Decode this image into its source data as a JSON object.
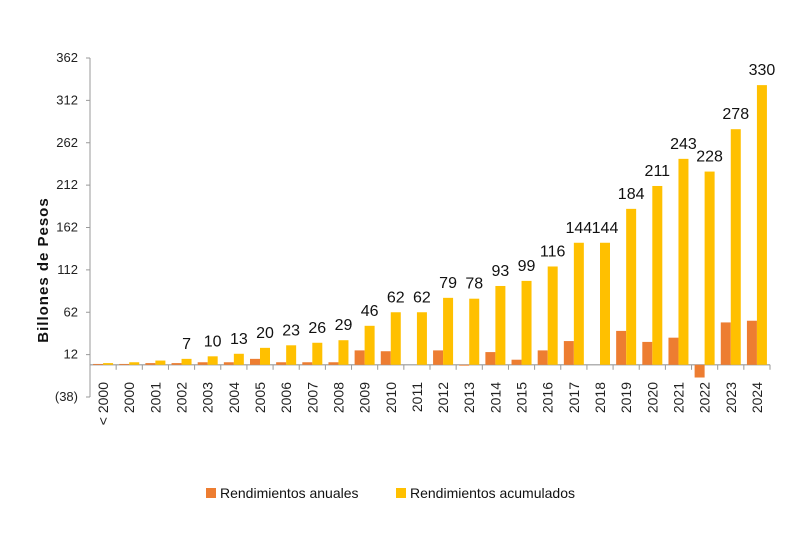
{
  "chart_data": {
    "type": "bar",
    "title": "",
    "xlabel": "",
    "ylabel": "Billones de Pesos",
    "ylim": [
      -38,
      362
    ],
    "yticks": [
      362,
      312,
      262,
      212,
      162,
      112,
      62,
      12,
      -38
    ],
    "ytick_labels": [
      "362",
      "312",
      "262",
      "212",
      "162",
      "112",
      "62",
      "12",
      "(38)"
    ],
    "categories": [
      "< 2000",
      "2000",
      "2001",
      "2002",
      "2003",
      "2004",
      "2005",
      "2006",
      "2007",
      "2008",
      "2009",
      "2010",
      "2011",
      "2012",
      "2013",
      "2014",
      "2015",
      "2016",
      "2017",
      "2018",
      "2019",
      "2020",
      "2021",
      "2022",
      "2023",
      "2024"
    ],
    "series": [
      {
        "name": "Rendimientos anuales",
        "color": "#ED7D31",
        "values": [
          1,
          1,
          2,
          2,
          3,
          3,
          7,
          3,
          3,
          3,
          17,
          16,
          0,
          17,
          -1,
          15,
          6,
          17,
          28,
          0,
          40,
          27,
          32,
          -15,
          50,
          52
        ]
      },
      {
        "name": "Rendimientos acumulados",
        "color": "#FFC000",
        "values": [
          2,
          3,
          5,
          7,
          10,
          13,
          20,
          23,
          26,
          29,
          46,
          62,
          62,
          79,
          78,
          93,
          99,
          116,
          144,
          144,
          184,
          211,
          243,
          228,
          278,
          330
        ],
        "data_labels": [
          "",
          "",
          "",
          "7",
          "10",
          "13",
          "20",
          "23",
          "26",
          "29",
          "46",
          "62",
          "62",
          "79",
          "78",
          "93",
          "99",
          "116",
          "144",
          "144",
          "184",
          "211",
          "243",
          "228",
          "278",
          "330"
        ]
      }
    ],
    "legend_position": "bottom",
    "grid": false
  }
}
